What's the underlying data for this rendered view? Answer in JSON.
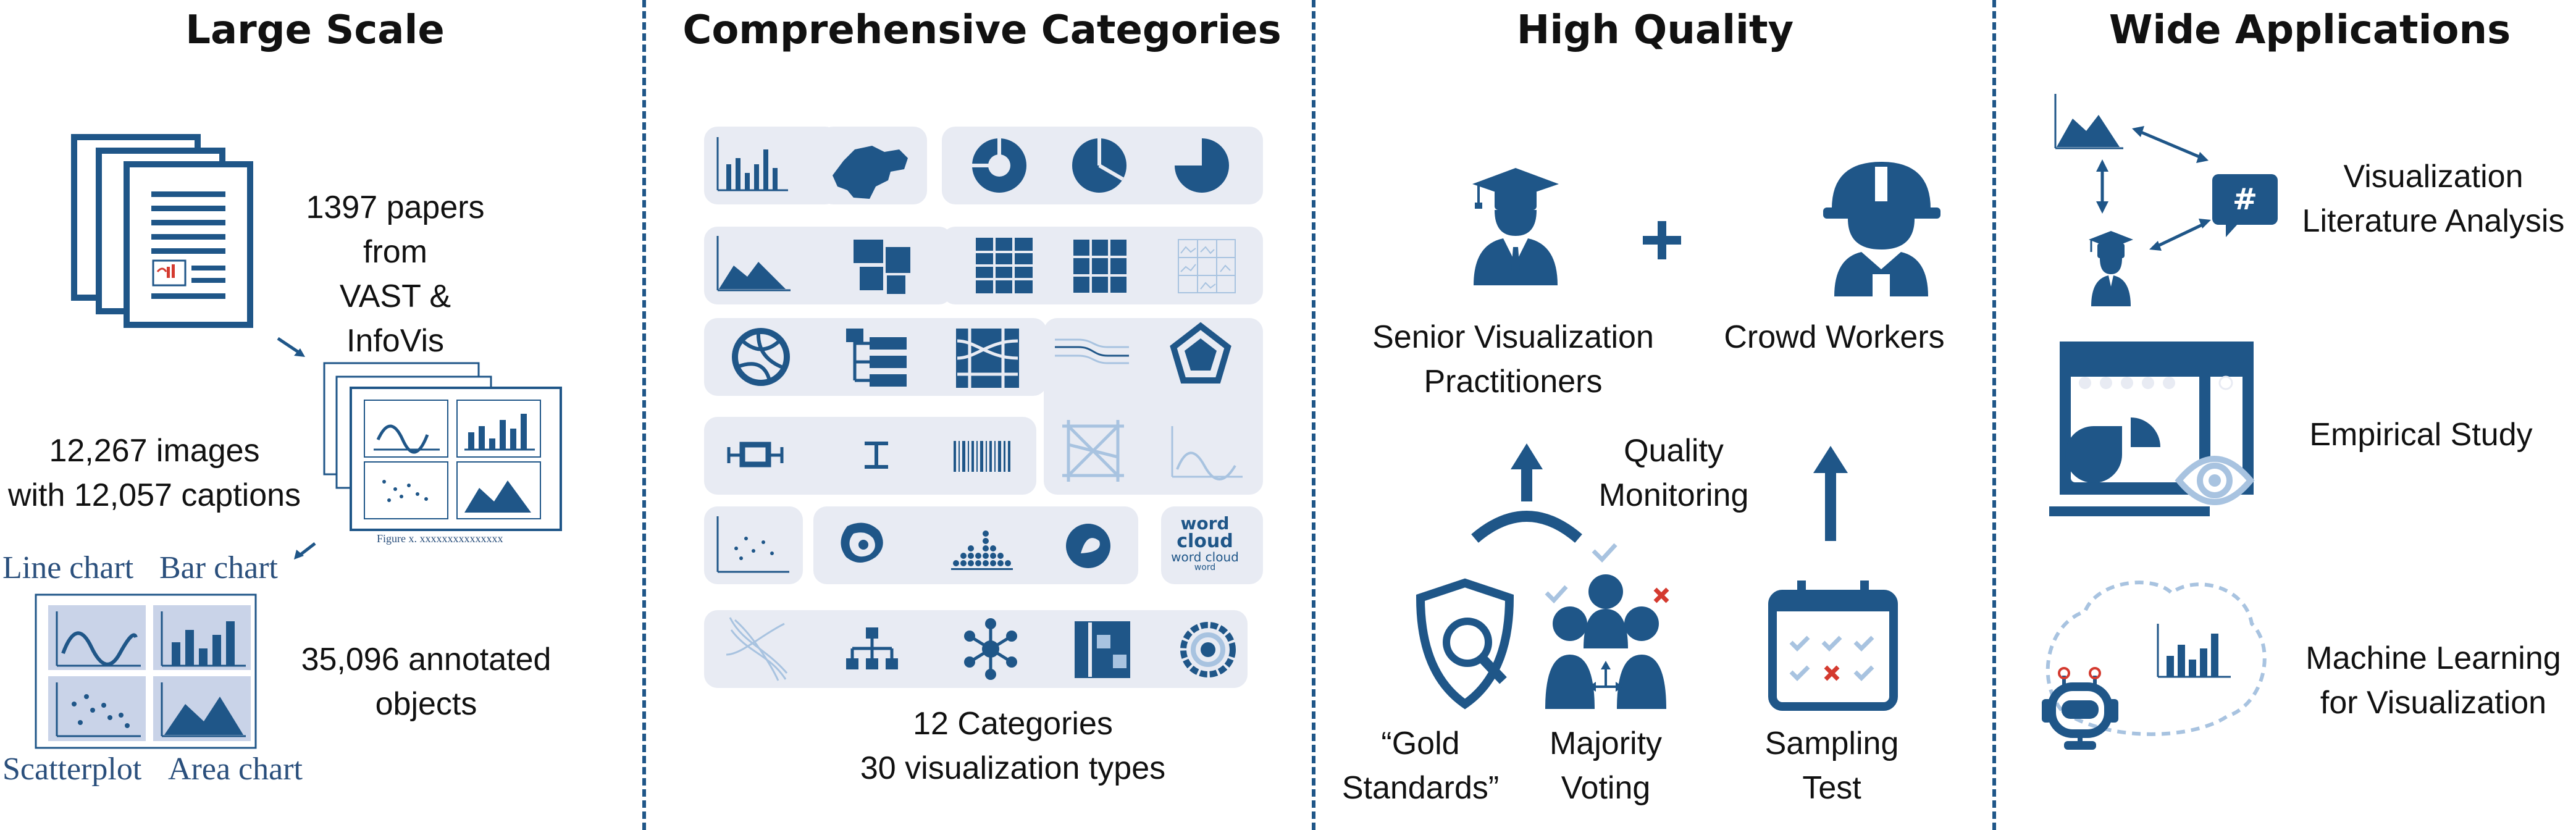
{
  "sections": {
    "large_scale": {
      "title": "Large Scale",
      "papers_line1": "1397 papers from",
      "papers_line2": "VAST & InfoVis",
      "images_line1": "12,267 images",
      "images_line2": "with 12,057 captions",
      "annotated_line1": "35,096 annotated",
      "annotated_line2": "objects",
      "figure_caption": "Figure x. xxxxxxxxxxxxxxx",
      "chart_labels": [
        "Line chart",
        "Bar chart",
        "Scatterplot",
        "Area chart"
      ]
    },
    "categories": {
      "title": "Comprehensive Categories",
      "summary_line1": "12 Categories",
      "summary_line2": "30 visualization types",
      "word_cloud_words": [
        "word",
        "cloud",
        "word cloud",
        "word"
      ]
    },
    "quality": {
      "title": "High Quality",
      "senior_line1": "Senior Visualization",
      "senior_line2": "Practitioners",
      "crowd": "Crowd Workers",
      "monitoring_line1": "Quality",
      "monitoring_line2": "Monitoring",
      "gold_line1": "“Gold",
      "gold_line2": "Standards”",
      "majority_line1": "Majority",
      "majority_line2": "Voting",
      "sampling_line1": "Sampling",
      "sampling_line2": "Test"
    },
    "applications": {
      "title": "Wide Applications",
      "app1_line1": "Visualization",
      "app1_line2": "Literature Analysis",
      "app2": "Empirical Study",
      "app3_line1": "Machine Learning",
      "app3_line2": "for Visualization",
      "hash_symbol": "#"
    }
  },
  "colors": {
    "primary": "#1f5688",
    "light_panel": "#e8ebf3",
    "light_blue": "#a8c3e0",
    "red": "#d43a2f"
  }
}
